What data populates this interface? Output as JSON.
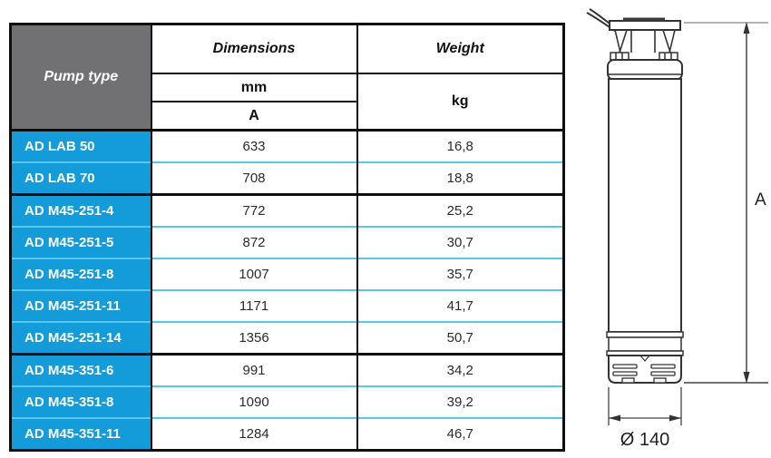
{
  "table": {
    "header": {
      "pump_type": "Pump type",
      "dimensions": "Dimensions",
      "weight": "Weight",
      "dimensions_unit": "mm",
      "dimension_symbol": "A",
      "weight_unit": "kg"
    },
    "rows": [
      {
        "pump_type": "AD LAB 50",
        "dimension_a": "633",
        "weight": "16,8",
        "group_start": false
      },
      {
        "pump_type": "AD LAB 70",
        "dimension_a": "708",
        "weight": "18,8",
        "group_start": false
      },
      {
        "pump_type": "AD M45-251-4",
        "dimension_a": "772",
        "weight": "25,2",
        "group_start": true
      },
      {
        "pump_type": "AD M45-251-5",
        "dimension_a": "872",
        "weight": "30,7",
        "group_start": false
      },
      {
        "pump_type": "AD M45-251-8",
        "dimension_a": "1007",
        "weight": "35,7",
        "group_start": false
      },
      {
        "pump_type": "AD M45-251-11",
        "dimension_a": "1171",
        "weight": "41,7",
        "group_start": false
      },
      {
        "pump_type": "AD M45-251-14",
        "dimension_a": "1356",
        "weight": "50,7",
        "group_start": false
      },
      {
        "pump_type": "AD M45-351-6",
        "dimension_a": "991",
        "weight": "34,2",
        "group_start": true
      },
      {
        "pump_type": "AD M45-351-8",
        "dimension_a": "1090",
        "weight": "39,2",
        "group_start": false
      },
      {
        "pump_type": "AD M45-351-11",
        "dimension_a": "1284",
        "weight": "46,7",
        "group_start": false
      }
    ]
  },
  "diagram": {
    "height_dimension_label": "A",
    "diameter_dimension_label": "Ø 140"
  },
  "colors": {
    "pump_type_cell_bg": "#149bd9",
    "header_cell_bg": "#717173",
    "row_separator": "#57c6ea",
    "table_border": "#0f0f0f"
  }
}
